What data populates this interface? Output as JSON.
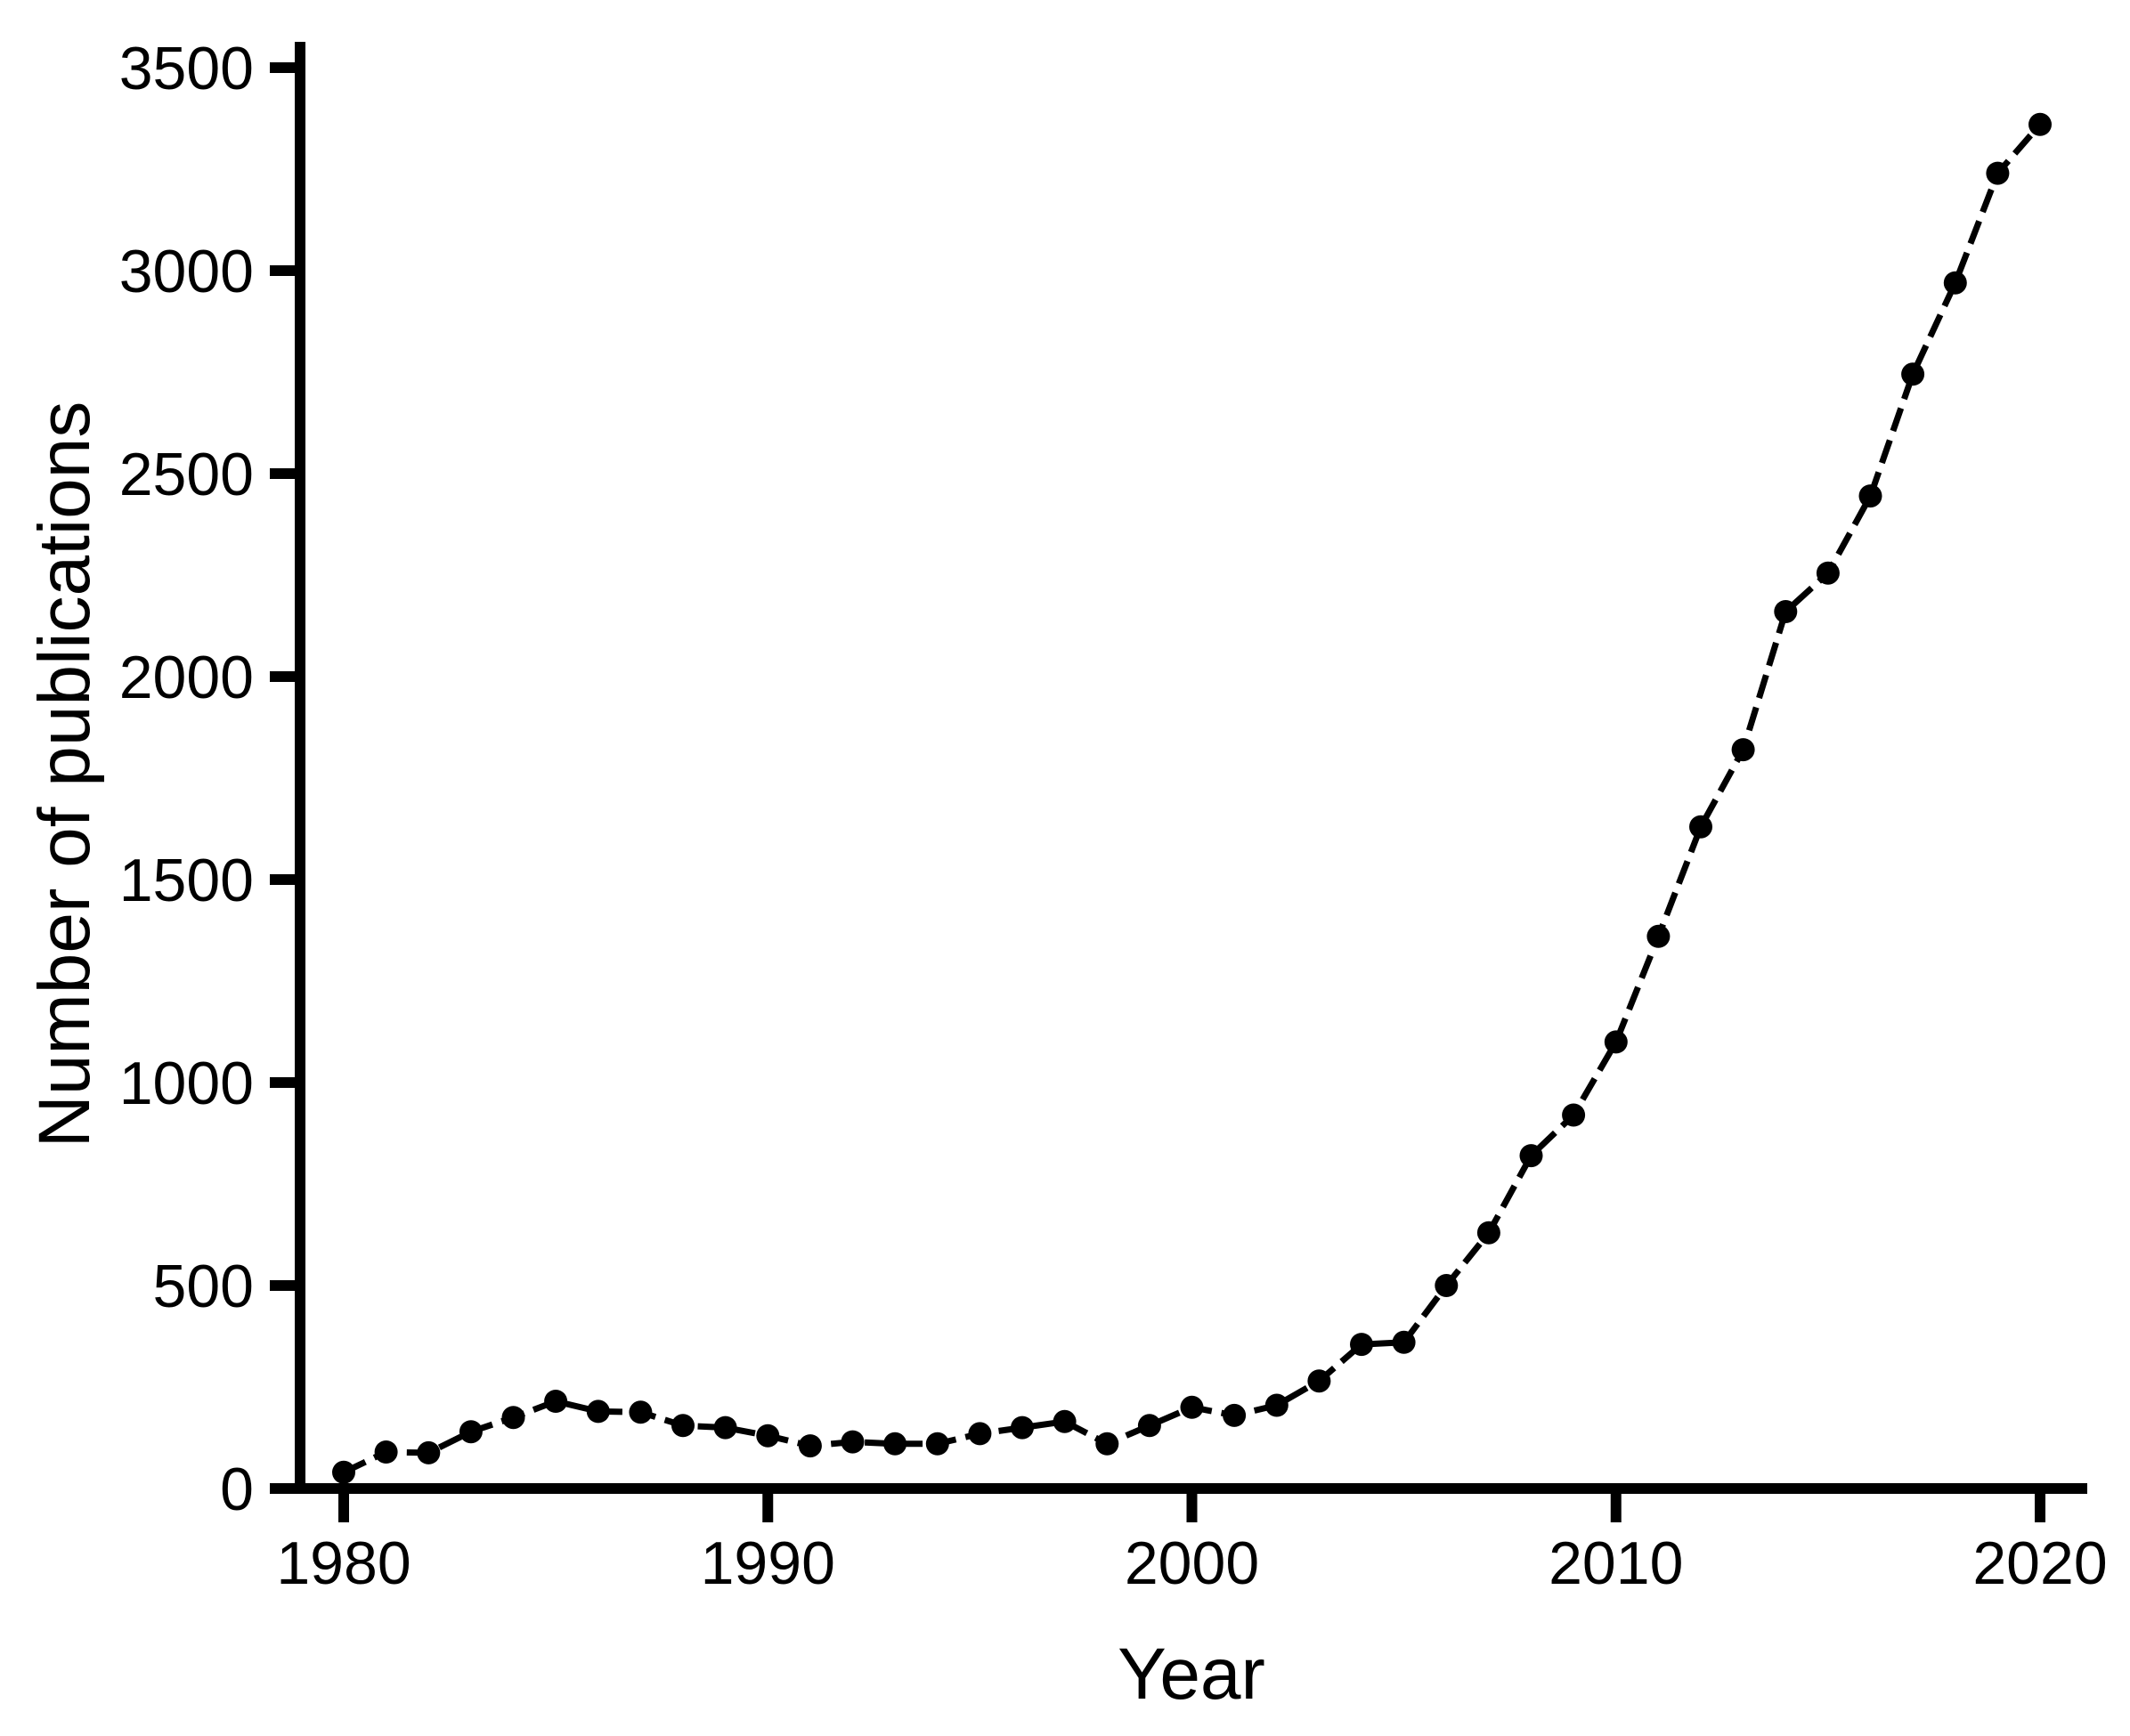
{
  "chart_data": {
    "type": "line",
    "title": "",
    "xlabel": "Year",
    "ylabel": "Number of publications",
    "series_name": "Number of publications",
    "x": [
      1980,
      1981,
      1982,
      1983,
      1984,
      1985,
      1986,
      1987,
      1988,
      1989,
      1990,
      1991,
      1992,
      1993,
      1994,
      1995,
      1996,
      1997,
      1998,
      1999,
      2000,
      2001,
      2002,
      2003,
      2004,
      2005,
      2006,
      2007,
      2008,
      2009,
      2010,
      2011,
      2012,
      2013,
      2014,
      2015,
      2016,
      2017,
      2018,
      2019,
      2020
    ],
    "values": [
      40,
      90,
      88,
      140,
      175,
      215,
      190,
      188,
      155,
      150,
      130,
      105,
      115,
      110,
      110,
      135,
      150,
      165,
      110,
      155,
      200,
      180,
      205,
      265,
      355,
      360,
      500,
      630,
      820,
      920,
      1100,
      1360,
      1630,
      1820,
      2160,
      2255,
      2445,
      2745,
      2970,
      3240,
      3360
    ],
    "x_ticks": [
      1980,
      1990,
      2000,
      2010,
      2020
    ],
    "y_ticks": [
      0,
      500,
      1000,
      1500,
      2000,
      2500,
      3000,
      3500
    ],
    "xlim": [
      1980,
      2020
    ],
    "ylim": [
      0,
      3500
    ],
    "grid": false,
    "legend": "none",
    "line_style": "dashed",
    "marker": "circle",
    "line_color": "#000000",
    "axis_color": "#000000",
    "background_color": "#ffffff"
  }
}
